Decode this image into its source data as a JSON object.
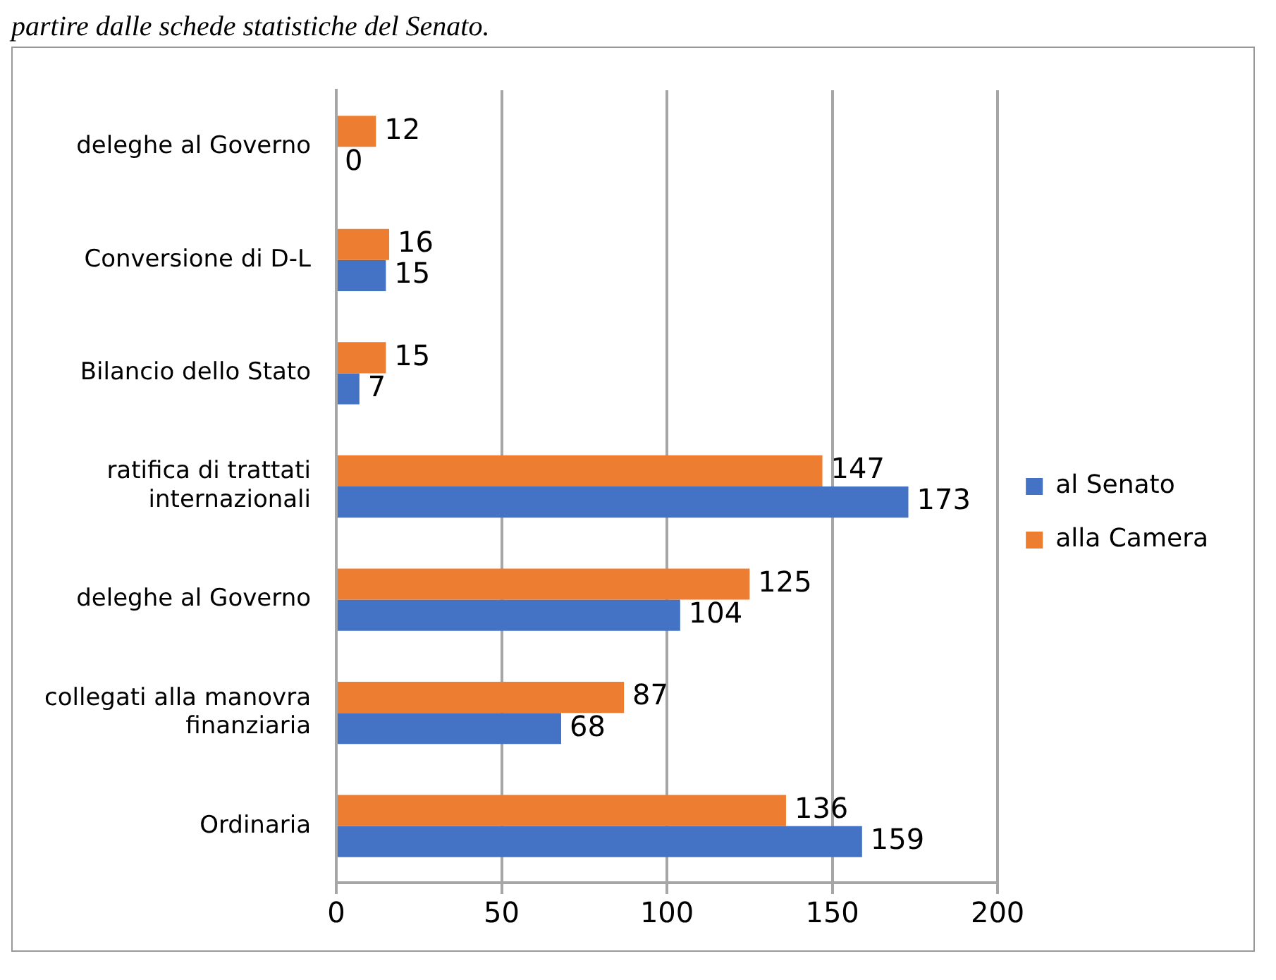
{
  "chart_data": {
    "type": "bar",
    "orientation": "horizontal",
    "annotations": [
      "partire dalle schede statistiche del Senato."
    ],
    "categories": [
      "deleghe al Governo",
      "Conversione di D-L",
      "Bilancio dello Stato",
      "ratifica di trattati internazionali",
      "deleghe al Governo",
      "collegati alla manovra finanziaria",
      "Ordinaria"
    ],
    "series": [
      {
        "name": "al Senato",
        "color": "#4472c4",
        "values": [
          0,
          15,
          7,
          173,
          104,
          68,
          159
        ]
      },
      {
        "name": "alla Camera",
        "color": "#ed7d31",
        "values": [
          12,
          16,
          15,
          147,
          125,
          87,
          136
        ]
      }
    ],
    "xlim": [
      0,
      200
    ],
    "xticks": [
      0,
      50,
      100,
      150,
      200
    ],
    "grid": "x",
    "legend": "right",
    "data_labels": true
  }
}
